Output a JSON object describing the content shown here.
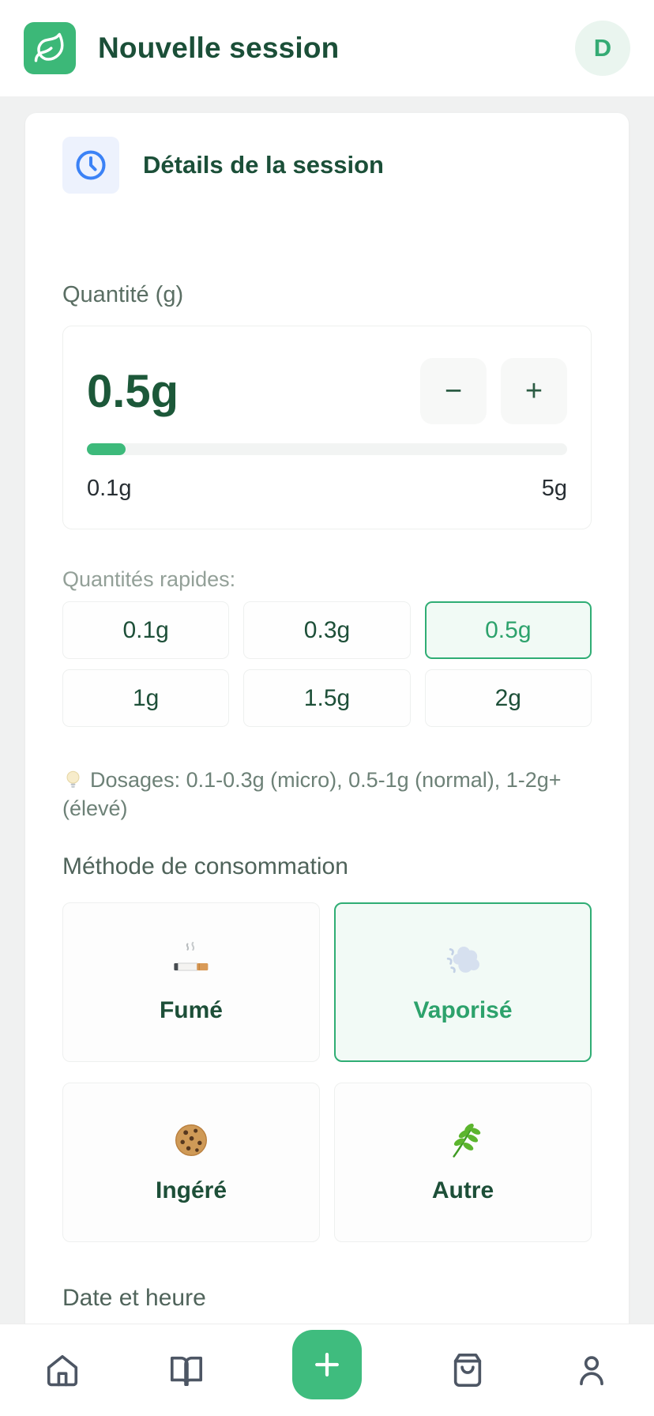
{
  "header": {
    "logo_icon": "leaf-icon",
    "title": "Nouvelle session",
    "avatar_initial": "D"
  },
  "session": {
    "section_icon": "clock-icon",
    "section_title": "Détails de la session",
    "quantity_label": "Quantité (g)",
    "quantity_value": "0.5g",
    "decrease_label": "−",
    "increase_label": "+",
    "slider_min_label": "0.1g",
    "slider_max_label": "5g",
    "slider_fill_percent": 8,
    "quick_label": "Quantités rapides:",
    "quick_options": [
      {
        "label": "0.1g",
        "selected": false
      },
      {
        "label": "0.3g",
        "selected": false
      },
      {
        "label": "0.5g",
        "selected": true
      },
      {
        "label": "1g",
        "selected": false
      },
      {
        "label": "1.5g",
        "selected": false
      },
      {
        "label": "2g",
        "selected": false
      }
    ],
    "dosage_hint_icon": "lightbulb-emoji",
    "dosage_hint": "Dosages: 0.1-0.3g (micro), 0.5-1g (normal), 1-2g+ (élevé)",
    "method_label": "Méthode de consommation",
    "method_options": [
      {
        "icon": "cigarette-emoji",
        "label": "Fumé",
        "selected": false
      },
      {
        "icon": "dash-cloud-emoji",
        "label": "Vaporisé",
        "selected": true
      },
      {
        "icon": "cookie-emoji",
        "label": "Ingéré",
        "selected": false
      },
      {
        "icon": "herb-emoji",
        "label": "Autre",
        "selected": false
      }
    ],
    "datetime_label": "Date et heure"
  },
  "nav": {
    "items": [
      {
        "icon": "home-icon"
      },
      {
        "icon": "journal-icon"
      },
      {
        "icon": "add-icon"
      },
      {
        "icon": "bag-icon"
      },
      {
        "icon": "profile-icon"
      }
    ]
  },
  "colors": {
    "brand_green": "#3cb878",
    "dark_green_text": "#1b4f38",
    "selected_green": "#2fad74",
    "accent_blue": "#3b82f6",
    "page_background": "#f0f1f1"
  }
}
